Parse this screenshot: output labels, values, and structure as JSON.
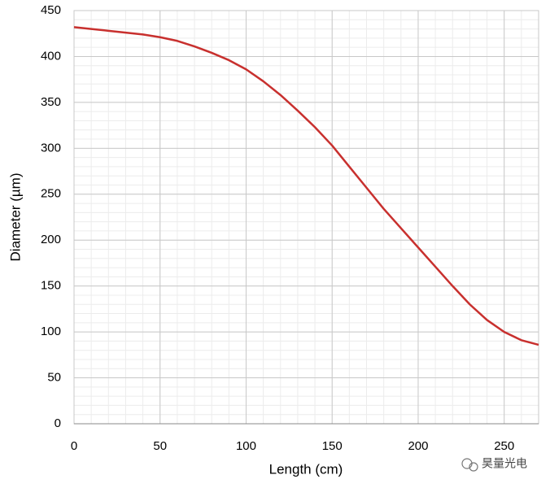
{
  "chart_data": {
    "type": "line",
    "x_label": "Length (cm)",
    "y_label": "Diameter (µm)",
    "x": [
      0,
      10,
      20,
      30,
      40,
      50,
      60,
      70,
      80,
      90,
      100,
      110,
      120,
      130,
      140,
      150,
      160,
      170,
      180,
      190,
      200,
      210,
      220,
      230,
      240,
      250,
      260,
      270
    ],
    "series": [
      {
        "color": "#c8302e",
        "values": [
          432,
          430,
          428,
          426,
          424,
          421,
          417,
          411,
          404,
          396,
          386,
          373,
          358,
          341,
          323,
          303,
          280,
          257,
          234,
          213,
          192,
          171,
          150,
          130,
          113,
          100,
          91,
          86
        ]
      }
    ],
    "xlim": [
      0,
      270
    ],
    "ylim": [
      0,
      450
    ],
    "xticks": [
      0,
      50,
      100,
      150,
      200,
      250
    ],
    "yticks": [
      0,
      50,
      100,
      150,
      200,
      250,
      300,
      350,
      400,
      450
    ],
    "grid": true,
    "minor_grid": true
  },
  "watermark": "昊量光电"
}
